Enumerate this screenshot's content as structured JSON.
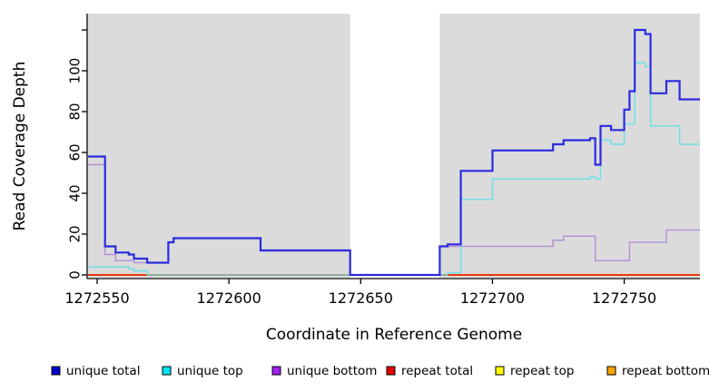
{
  "chart_data": {
    "type": "line",
    "step": true,
    "title": "",
    "xlabel": "Coordinate in Reference Genome",
    "ylabel": "Read Coverage Depth",
    "xlim": [
      1272546.6,
      1272778.8
    ],
    "ylim": [
      0,
      128
    ],
    "x_ticks": [
      1272550,
      1272600,
      1272650,
      1272700,
      1272750
    ],
    "y_ticks": [
      0,
      20,
      40,
      60,
      80,
      100,
      120
    ],
    "y_ticks_labeled": [
      0,
      20,
      40,
      60,
      80,
      100
    ],
    "grid": false,
    "panel_bg": "#DBDBDB",
    "no_data_region": {
      "x_start": 1272646,
      "x_end": 1272680,
      "fill": "#FFFFFF"
    },
    "legend_position": "bottom",
    "series": [
      {
        "name": "unique_total",
        "label": "unique total",
        "color": "#0000CC",
        "points": [
          [
            1272547,
            58
          ],
          [
            1272553,
            14
          ],
          [
            1272557,
            11
          ],
          [
            1272562,
            10
          ],
          [
            1272564,
            8
          ],
          [
            1272569,
            6
          ],
          [
            1272577,
            16
          ],
          [
            1272579,
            18
          ],
          [
            1272612,
            12
          ],
          [
            1272646,
            0
          ],
          [
            1272680,
            14
          ],
          [
            1272683,
            15
          ],
          [
            1272688,
            51
          ],
          [
            1272700,
            61
          ],
          [
            1272723,
            64
          ],
          [
            1272727,
            66
          ],
          [
            1272737,
            67
          ],
          [
            1272739,
            54
          ],
          [
            1272741,
            73
          ],
          [
            1272745,
            71
          ],
          [
            1272750,
            81
          ],
          [
            1272752,
            90
          ],
          [
            1272754,
            120
          ],
          [
            1272758,
            118
          ],
          [
            1272760,
            89
          ],
          [
            1272766,
            95
          ],
          [
            1272771,
            86
          ]
        ]
      },
      {
        "name": "unique_top",
        "label": "unique top",
        "color": "#00E5EE",
        "points": [
          [
            1272547,
            4
          ],
          [
            1272562,
            3
          ],
          [
            1272564,
            2
          ],
          [
            1272569,
            0
          ],
          [
            1272683,
            1
          ],
          [
            1272688,
            37
          ],
          [
            1272700,
            47
          ],
          [
            1272737,
            48
          ],
          [
            1272739,
            47
          ],
          [
            1272741,
            66
          ],
          [
            1272745,
            64
          ],
          [
            1272750,
            74
          ],
          [
            1272754,
            104
          ],
          [
            1272758,
            102
          ],
          [
            1272760,
            73
          ],
          [
            1272771,
            64
          ]
        ]
      },
      {
        "name": "unique_bottom",
        "label": "unique bottom",
        "color": "#A020F0",
        "points": [
          [
            1272547,
            54
          ],
          [
            1272553,
            10
          ],
          [
            1272557,
            7
          ],
          [
            1272564,
            6
          ],
          [
            1272577,
            16
          ],
          [
            1272579,
            18
          ],
          [
            1272612,
            12
          ],
          [
            1272646,
            0
          ],
          [
            1272680,
            14
          ],
          [
            1272723,
            17
          ],
          [
            1272727,
            19
          ],
          [
            1272739,
            7
          ],
          [
            1272752,
            16
          ],
          [
            1272766,
            22
          ]
        ]
      },
      {
        "name": "repeat_total",
        "label": "repeat total",
        "color": "#E60000",
        "points": [
          [
            1272547,
            0
          ]
        ]
      },
      {
        "name": "repeat_top",
        "label": "repeat top",
        "color": "#FFFF00",
        "points": [
          [
            1272547,
            0
          ]
        ]
      },
      {
        "name": "repeat_bottom",
        "label": "repeat bottom",
        "color": "#FFA500",
        "points": [
          [
            1272547,
            0
          ]
        ]
      }
    ]
  }
}
